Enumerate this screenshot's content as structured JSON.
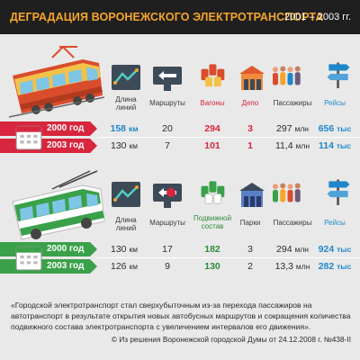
{
  "header": {
    "title": "ДЕГРАДАЦИЯ ВОРОНЕЖСКОГО ЭЛЕКТРОТРАНСПОРТА",
    "years": "2001 – 2003 гг."
  },
  "tram": {
    "labels": {
      "length": "Длина линий",
      "routes": "Маршруты",
      "cars": "Вагоны",
      "depot": "Депо",
      "passengers": "Пассажиры",
      "trips": "Рейсы"
    },
    "rows": [
      {
        "year": "2000 год",
        "length": "158",
        "length_unit": "км",
        "routes": "20",
        "cars": "294",
        "depot": "3",
        "passengers": "297",
        "passengers_unit": "млн",
        "trips": "656",
        "trips_unit": "тыс"
      },
      {
        "year": "2003 год",
        "length": "130",
        "length_unit": "км",
        "routes": "7",
        "cars": "101",
        "depot": "1",
        "passengers": "11,4",
        "passengers_unit": "млн",
        "trips": "114",
        "trips_unit": "тыс"
      }
    ]
  },
  "trolleybus": {
    "labels": {
      "length": "Длина линий",
      "routes": "Маршруты",
      "cars": "Подвижной состав",
      "depot": "Парки",
      "passengers": "Пассажиры",
      "trips": "Рейсы"
    },
    "rows": [
      {
        "year": "2000 год",
        "length": "130",
        "length_unit": "км",
        "routes": "17",
        "cars": "182",
        "depot": "3",
        "passengers": "294",
        "passengers_unit": "млн",
        "trips": "924",
        "trips_unit": "тыс"
      },
      {
        "year": "2003 год",
        "length": "126",
        "length_unit": "км",
        "routes": "9",
        "cars": "130",
        "depot": "2",
        "passengers": "13,3",
        "passengers_unit": "млн",
        "trips": "282",
        "trips_unit": "тыс"
      }
    ]
  },
  "quote": "«Городской электротранспорт стал сверхубыточным из-за перехода пассажиров на автотранспорт в результате открытия новых автобусных маршрутов и сокращения количества подвижного состава электротранспорта с увеличением интервалов его движения».",
  "source": "© Из решения Воронежской городской Думы от 24.12.2008 г. №438-II",
  "colors": {
    "header_bg": "#1f1f1f",
    "title": "#f5a52a",
    "tram_badge": "#d7263d",
    "trolley_badge": "#3aa14a",
    "cars": "#d7263d",
    "trips": "#1f87c9"
  },
  "icons": [
    "tram-icon",
    "map-length-icon",
    "route-sign-icon",
    "tram-cars-icon",
    "depot-icon",
    "passengers-icon",
    "signpost-icon",
    "calendar-icon",
    "trolleybus-icon",
    "trolley-cars-icon",
    "park-icon"
  ]
}
